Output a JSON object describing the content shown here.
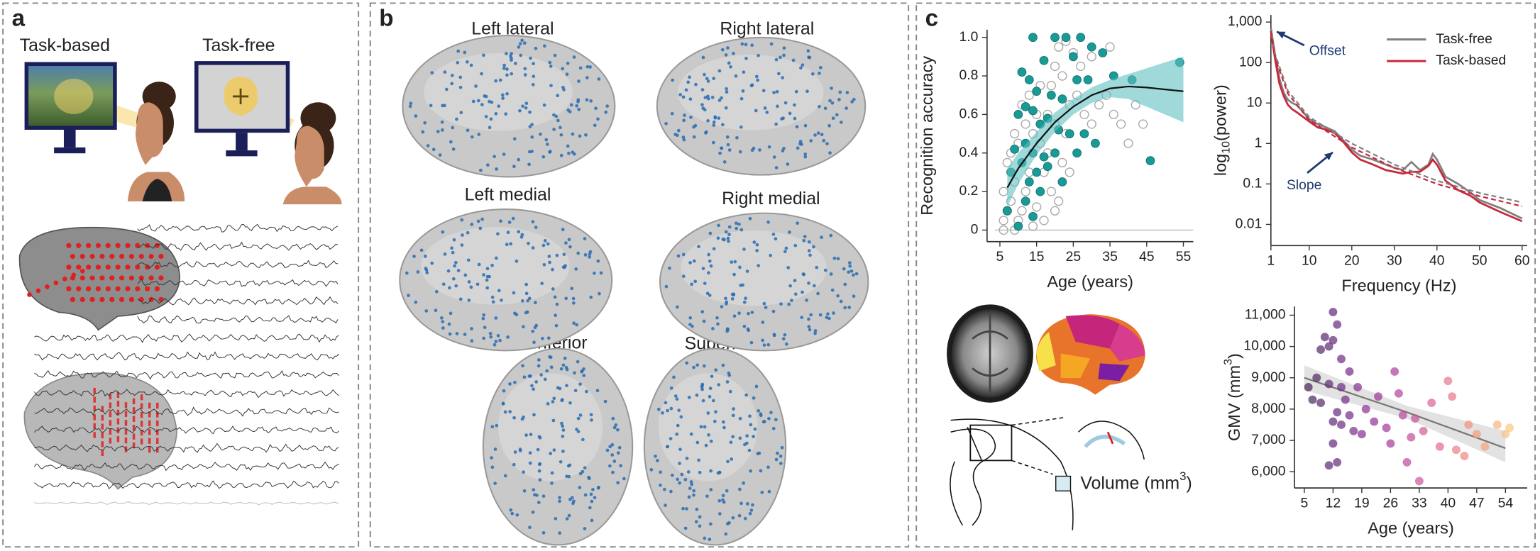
{
  "panels": [
    {
      "label": "a",
      "titles": [
        "Task-based",
        "Task-free"
      ]
    },
    {
      "label": "b",
      "views": [
        "Left lateral",
        "Right lateral",
        "Left medial",
        "Right medial",
        "Inferior",
        "Superior"
      ]
    },
    {
      "label": "c",
      "volume_label": {
        "parts": [
          "Volume (mm",
          "3",
          ")"
        ],
        "script": "sup"
      }
    }
  ],
  "chart_data": [
    {
      "type": "scatter",
      "xlabel": "Age (years)",
      "ylabel": "Recognition accuracy",
      "xlim": [
        1.5,
        57.7
      ],
      "ylim": [
        -0.06,
        1.04
      ],
      "xticks": [
        5,
        15,
        25,
        35,
        45,
        55
      ],
      "yticks": [
        0,
        0.2,
        0.4,
        0.6,
        0.8,
        {
          "value": 1,
          "label": "1.0"
        }
      ],
      "reference_line": 0,
      "series": [
        {
          "color": "#aaaaaa",
          "marker": "open",
          "x": [
            6,
            7,
            8,
            6,
            9,
            10,
            11,
            12,
            13,
            7,
            8,
            10,
            9,
            12,
            15,
            14,
            16,
            18,
            17,
            19,
            20,
            21,
            22,
            23,
            24,
            19,
            20,
            21,
            23,
            25,
            27,
            22,
            26,
            28,
            30,
            32,
            34,
            36,
            38,
            40,
            42,
            44,
            11,
            13,
            15,
            17,
            6,
            9,
            14,
            18,
            30,
            35,
            24,
            20,
            16
          ],
          "values": [
            0.05,
            0.1,
            0.15,
            0.2,
            0.25,
            0.05,
            0.1,
            0.2,
            0.3,
            0.35,
            0.4,
            0.45,
            0.5,
            0.55,
            0.6,
            0.5,
            0.45,
            0.4,
            0.3,
            0.2,
            0.1,
            0.15,
            0.35,
            0.5,
            0.65,
            0.75,
            0.85,
            0.95,
            0.98,
            0.92,
            0.85,
            0.8,
            0.7,
            0.6,
            0.55,
            0.65,
            0.7,
            0.6,
            0.55,
            0.45,
            0.65,
            0.55,
            0.65,
            0.7,
            0.12,
            0.05,
            0,
            0,
            0.02,
            0.6,
            0.9,
            0.95,
            0.3,
            0.55,
            0.75
          ]
        },
        {
          "color": "#1a9a96",
          "marker": "filled",
          "x": [
            14,
            20,
            23,
            27,
            30,
            33,
            25,
            17,
            11,
            13,
            26,
            29,
            36,
            41,
            54,
            15,
            19,
            22,
            12,
            14,
            10,
            18,
            16,
            21,
            24,
            28,
            31,
            12,
            9,
            14,
            17,
            20,
            26,
            46,
            11,
            15,
            13,
            8,
            16,
            12,
            14,
            10,
            7,
            22,
            18
          ],
          "values": [
            1,
            1,
            1,
            1,
            0.95,
            0.92,
            0.9,
            0.88,
            0.82,
            0.78,
            0.78,
            0.78,
            0.8,
            0.78,
            0.87,
            0.72,
            0.7,
            0.68,
            0.64,
            0.62,
            0.6,
            0.58,
            0.55,
            0.52,
            0.5,
            0.5,
            0.45,
            0.45,
            0.42,
            0.4,
            0.38,
            0.4,
            0.4,
            0.36,
            0.35,
            0.3,
            0.25,
            0.3,
            0.2,
            0.15,
            0.07,
            0.02,
            0.1,
            0.25,
            0.33
          ]
        }
      ],
      "fit": {
        "color": "#111111",
        "band_color": "#5fbfbf",
        "x": [
          7,
          10,
          15,
          20,
          25,
          30,
          35,
          40,
          45,
          50,
          55
        ],
        "values": [
          0.22,
          0.32,
          0.45,
          0.56,
          0.64,
          0.7,
          0.735,
          0.745,
          0.74,
          0.73,
          0.72
        ],
        "lower": [
          0.12,
          0.24,
          0.39,
          0.51,
          0.6,
          0.66,
          0.69,
          0.68,
          0.64,
          0.6,
          0.56
        ],
        "upper": [
          0.32,
          0.4,
          0.51,
          0.61,
          0.68,
          0.74,
          0.78,
          0.81,
          0.84,
          0.87,
          0.9
        ]
      }
    },
    {
      "type": "line",
      "log_y": true,
      "legend": "upper right",
      "xlabel": "Frequency (Hz)",
      "ylabel": {
        "parts": [
          "log",
          "10",
          "(power)"
        ],
        "script": "sub"
      },
      "xlim": [
        1,
        61.2
      ],
      "ylim": [
        0.003,
        1500
      ],
      "xticks": [
        1,
        10,
        20,
        30,
        40,
        50,
        60
      ],
      "yticks": [
        0.01,
        0.1,
        1,
        10,
        100,
        {
          "value": 1000,
          "label": "1,000"
        }
      ],
      "annotations": [
        "Offset",
        "Slope"
      ],
      "annotation_color": "#1f3a70",
      "series": [
        {
          "name": "Task-free",
          "color": "#808080",
          "x": [
            1,
            2,
            3,
            4,
            5,
            6,
            7,
            8,
            10,
            12,
            14,
            16,
            18,
            20,
            22,
            25,
            28,
            30,
            32,
            34,
            36,
            38,
            39,
            40,
            42,
            45,
            48,
            50,
            55,
            60
          ],
          "values": [
            700,
            150,
            40,
            18,
            12,
            10,
            9,
            7,
            4,
            3,
            2.5,
            2,
            1.2,
            0.7,
            0.5,
            0.4,
            0.3,
            0.25,
            0.22,
            0.35,
            0.22,
            0.3,
            0.55,
            0.4,
            0.15,
            0.1,
            0.06,
            0.04,
            0.025,
            0.014
          ]
        },
        {
          "name": "Task-based",
          "color": "#c8283c",
          "x": [
            1,
            2,
            3,
            4,
            5,
            6,
            7,
            8,
            10,
            12,
            14,
            16,
            18,
            20,
            22,
            25,
            28,
            30,
            32,
            34,
            36,
            38,
            39,
            40,
            42,
            45,
            48,
            50,
            55,
            60
          ],
          "values": [
            600,
            120,
            30,
            15,
            9,
            7,
            6,
            5,
            3.5,
            2.5,
            2.2,
            1.8,
            1.1,
            0.6,
            0.4,
            0.3,
            0.22,
            0.2,
            0.18,
            0.2,
            0.2,
            0.28,
            0.4,
            0.3,
            0.12,
            0.07,
            0.05,
            0.035,
            0.02,
            0.012
          ]
        },
        {
          "color": "#808080",
          "dash": true,
          "x": [
            1,
            2,
            5,
            10,
            20,
            30,
            40,
            50,
            60
          ],
          "values": [
            700,
            160,
            20,
            4.5,
            1,
            0.3,
            0.12,
            0.06,
            0.035
          ]
        },
        {
          "color": "#c8283c",
          "dash": true,
          "x": [
            1,
            2,
            5,
            10,
            20,
            30,
            40,
            50,
            60
          ],
          "values": [
            600,
            130,
            17,
            3.8,
            0.8,
            0.25,
            0.1,
            0.05,
            0.028
          ]
        }
      ]
    },
    {
      "type": "scatter",
      "xlabel": "Age (years)",
      "ylabel": {
        "parts": [
          "GMV (mm",
          "3",
          ")"
        ],
        "script": "sup"
      },
      "xlim": [
        2.6,
        59.3
      ],
      "ylim": [
        5480,
        11280
      ],
      "xticks": [
        5,
        12,
        19,
        26,
        33,
        40,
        47,
        54
      ],
      "yticks": [
        {
          "value": 6000,
          "label": "6,000"
        },
        {
          "value": 7000,
          "label": "7,000"
        },
        {
          "value": 8000,
          "label": "8,000"
        },
        {
          "value": 9000,
          "label": "9,000"
        },
        {
          "value": 10000,
          "label": "10,000"
        },
        {
          "value": 11000,
          "label": "11,000"
        }
      ],
      "colormap": [
        "#3b2a4a",
        "#6e2f86",
        "#a63c9e",
        "#e0679a",
        "#f4a07c",
        "#f5e48a"
      ],
      "series": [
        {
          "marker": "filled",
          "x": [
            6,
            7,
            8,
            9,
            10,
            11,
            12,
            13,
            12,
            14,
            9,
            11,
            12,
            13,
            14,
            15,
            16,
            17,
            18,
            12,
            11,
            13,
            14,
            16,
            19,
            20,
            22,
            23,
            25,
            26,
            27,
            28,
            29,
            30,
            31,
            32,
            33,
            34,
            36,
            38,
            40,
            41,
            42,
            44,
            45,
            47,
            49,
            52,
            54,
            55
          ],
          "values": [
            8700,
            8300,
            9000,
            9900,
            10300,
            10000,
            11100,
            10700,
            10200,
            9600,
            8200,
            8800,
            7600,
            7900,
            8700,
            8300,
            9200,
            7300,
            8700,
            6900,
            6200,
            6300,
            7500,
            7800,
            7200,
            8000,
            7600,
            8400,
            7400,
            6900,
            9200,
            8500,
            7800,
            6300,
            7100,
            7700,
            5700,
            7300,
            8200,
            6800,
            8900,
            8400,
            6700,
            6500,
            7500,
            7200,
            6800,
            7500,
            7200,
            7400
          ]
        }
      ],
      "fit": {
        "color": "#777777",
        "band_color": "#cfcfcf",
        "x": [
          5,
          30,
          54
        ],
        "values": [
          9000,
          7900,
          6750
        ],
        "lower": [
          8600,
          7700,
          6300
        ],
        "upper": [
          9400,
          8100,
          7300
        ]
      }
    }
  ]
}
